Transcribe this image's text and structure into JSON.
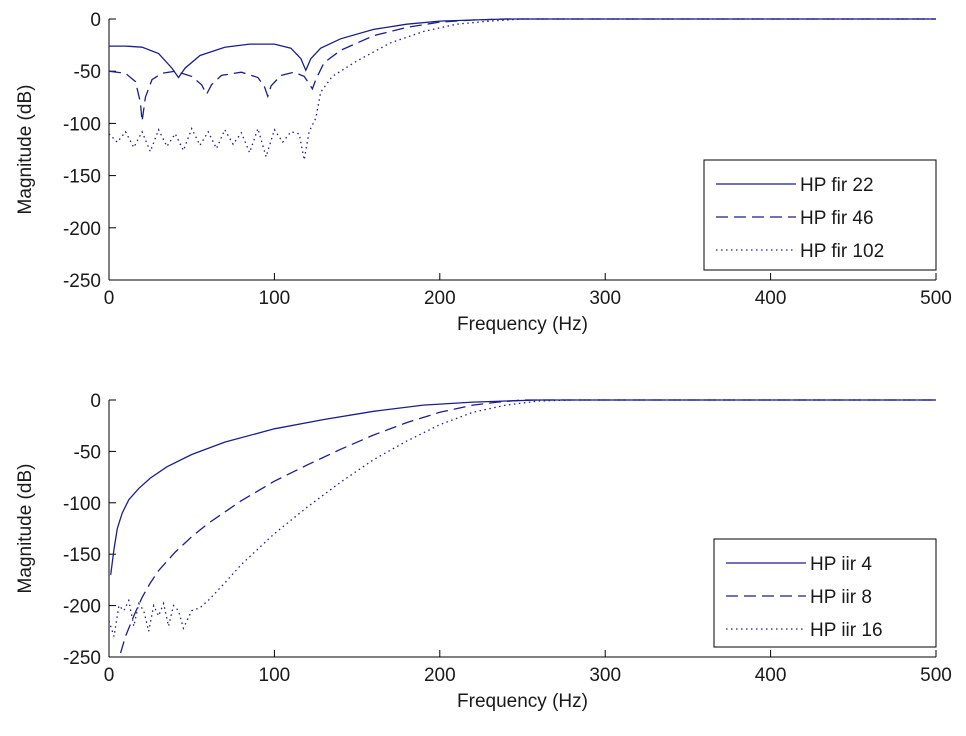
{
  "colors": {
    "series": "#1a1f8c",
    "axes": "#000000",
    "background": "#ffffff"
  },
  "chart_data": [
    {
      "type": "line",
      "xlabel": "Frequency (Hz)",
      "ylabel": "Magnitude (dB)",
      "xlim": [
        0,
        500
      ],
      "ylim": [
        -250,
        0
      ],
      "xticks": [
        "0",
        "100",
        "200",
        "300",
        "400",
        "500"
      ],
      "yticks": [
        "0",
        "-50",
        "-100",
        "-150",
        "-200",
        "-250"
      ],
      "grid": false,
      "legend_position": "bottom-right",
      "series": [
        {
          "name": "HP fir 22",
          "style": "solid",
          "x": [
            0,
            10,
            20,
            30,
            38,
            42,
            46,
            55,
            70,
            85,
            100,
            110,
            116,
            119,
            122,
            128,
            140,
            160,
            180,
            200,
            220,
            240,
            260,
            300,
            500
          ],
          "y": [
            -26,
            -26,
            -27,
            -33,
            -47,
            -56,
            -47,
            -35,
            -27,
            -24,
            -24,
            -28,
            -38,
            -49,
            -38,
            -28,
            -19,
            -10,
            -5,
            -2,
            -1,
            0,
            0,
            0,
            0
          ]
        },
        {
          "name": "HP fir 46",
          "style": "dashed",
          "x": [
            0,
            10,
            16,
            19,
            20,
            22,
            26,
            32,
            40,
            50,
            56,
            59,
            62,
            68,
            80,
            90,
            94,
            96,
            98,
            104,
            112,
            118,
            121,
            123,
            125,
            130,
            140,
            160,
            180,
            200,
            220,
            240,
            260,
            300,
            500
          ],
          "y": [
            -50,
            -52,
            -60,
            -80,
            -98,
            -75,
            -58,
            -52,
            -50,
            -55,
            -63,
            -72,
            -63,
            -54,
            -51,
            -56,
            -65,
            -74,
            -64,
            -54,
            -51,
            -55,
            -62,
            -67,
            -58,
            -42,
            -30,
            -16,
            -8,
            -3,
            -1,
            0,
            0,
            0,
            0
          ],
          "comment_none": ""
        },
        {
          "name": "HP fir 102",
          "style": "dotted",
          "x": [
            0,
            5,
            10,
            15,
            20,
            25,
            30,
            35,
            40,
            45,
            50,
            55,
            60,
            65,
            70,
            75,
            80,
            85,
            90,
            95,
            100,
            105,
            110,
            115,
            118,
            121,
            125,
            128,
            135,
            150,
            170,
            190,
            210,
            230,
            250,
            300,
            500
          ],
          "y": [
            -110,
            -118,
            -108,
            -123,
            -108,
            -127,
            -106,
            -122,
            -110,
            -126,
            -105,
            -121,
            -108,
            -124,
            -106,
            -120,
            -109,
            -128,
            -105,
            -132,
            -106,
            -118,
            -108,
            -110,
            -135,
            -108,
            -95,
            -70,
            -55,
            -40,
            -23,
            -12,
            -5,
            -2,
            0,
            0,
            0
          ]
        }
      ]
    },
    {
      "type": "line",
      "xlabel": "Frequency (Hz)",
      "ylabel": "Magnitude (dB)",
      "xlim": [
        0,
        500
      ],
      "ylim": [
        -250,
        0
      ],
      "xticks": [
        "0",
        "100",
        "200",
        "300",
        "400",
        "500"
      ],
      "yticks": [
        "0",
        "-50",
        "-100",
        "-150",
        "-200",
        "-250"
      ],
      "grid": false,
      "legend_position": "bottom-right",
      "series": [
        {
          "name": "HP iir 4",
          "style": "solid",
          "x": [
            1,
            3,
            5,
            8,
            12,
            18,
            25,
            35,
            50,
            70,
            100,
            130,
            160,
            190,
            220,
            240,
            260,
            300,
            500
          ],
          "y": [
            -170,
            -145,
            -125,
            -110,
            -97,
            -86,
            -76,
            -65,
            -53,
            -41,
            -28,
            -19,
            -11,
            -5,
            -2,
            -1,
            0,
            0,
            0
          ]
        },
        {
          "name": "HP iir 8",
          "style": "dashed",
          "x": [
            7,
            10,
            15,
            20,
            25,
            30,
            40,
            50,
            60,
            80,
            100,
            120,
            140,
            160,
            180,
            200,
            220,
            235,
            250,
            280,
            300,
            500
          ],
          "y": [
            -246,
            -230,
            -210,
            -192,
            -178,
            -166,
            -148,
            -133,
            -120,
            -98,
            -79,
            -63,
            -48,
            -34,
            -22,
            -12,
            -5,
            -2,
            0,
            0,
            0,
            0
          ]
        },
        {
          "name": "HP iir 16",
          "style": "dotted",
          "x": [
            0,
            3,
            6,
            9,
            12,
            15,
            18,
            21,
            24,
            27,
            30,
            33,
            36,
            39,
            42,
            45,
            50,
            55,
            60,
            70,
            80,
            100,
            120,
            140,
            160,
            180,
            200,
            220,
            240,
            260,
            280,
            300,
            500
          ],
          "y": [
            -215,
            -230,
            -200,
            -205,
            -195,
            -220,
            -198,
            -205,
            -225,
            -200,
            -210,
            -198,
            -220,
            -200,
            -205,
            -222,
            -205,
            -202,
            -195,
            -178,
            -160,
            -130,
            -104,
            -80,
            -58,
            -40,
            -24,
            -12,
            -5,
            -1,
            0,
            0,
            0
          ]
        }
      ]
    }
  ]
}
